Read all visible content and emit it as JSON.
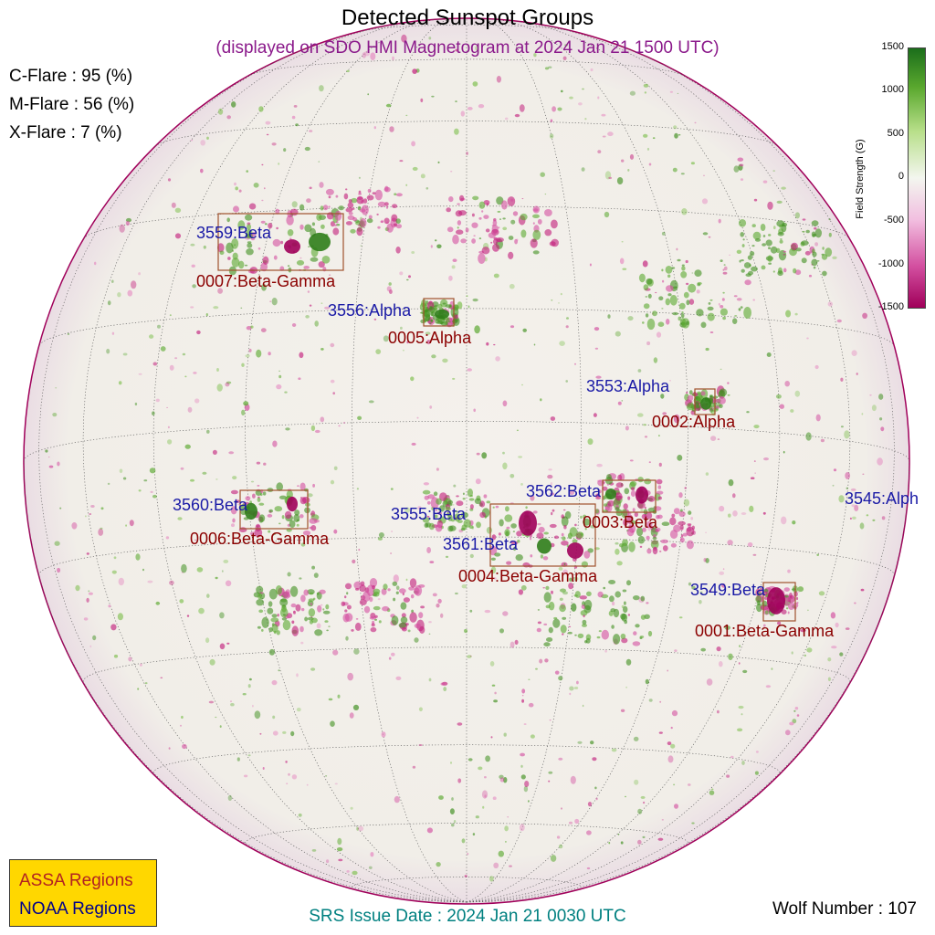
{
  "title": "Detected Sunspot Groups",
  "subtitle": "(displayed on SDO HMI Magnetogram at 2024 Jan 21 1500 UTC)",
  "flares": [
    {
      "label": "C-Flare : 95 (%)"
    },
    {
      "label": "M-Flare : 56 (%)"
    },
    {
      "label": "X-Flare :  7 (%)"
    }
  ],
  "colorbar": {
    "label": "Field Strength (G)",
    "ticks": [
      "1500",
      "1000",
      "500",
      "0",
      "-500",
      "-1000",
      "-1500"
    ],
    "range": [
      -1500,
      1500
    ],
    "colors": {
      "positive": "#1b6e1b",
      "zero": "#f3f6ef",
      "negative": "#a0005a"
    }
  },
  "legend": {
    "assa": "ASSA Regions",
    "noaa": "NOAA Regions",
    "background": "#ffd700"
  },
  "wolf_number": "Wolf Number : 107",
  "srs_issue": "SRS Issue Date : 2024 Jan 21 0030 UTC",
  "noaa_regions": [
    {
      "label": "3559:Beta"
    },
    {
      "label": "3556:Alpha"
    },
    {
      "label": "3553:Alpha"
    },
    {
      "label": "3560:Beta"
    },
    {
      "label": "3555:Beta"
    },
    {
      "label": "3562:Beta"
    },
    {
      "label": "3561:Beta"
    },
    {
      "label": "3549:Beta"
    },
    {
      "label": "3545:Alph"
    }
  ],
  "assa_regions": [
    {
      "label": "0007:Beta-Gamma"
    },
    {
      "label": "0005:Alpha"
    },
    {
      "label": "0002:Alpha"
    },
    {
      "label": "0006:Beta-Gamma"
    },
    {
      "label": "0003:Beta"
    },
    {
      "label": "0004:Beta-Gamma"
    },
    {
      "label": "0001:Beta-Gamma"
    }
  ]
}
